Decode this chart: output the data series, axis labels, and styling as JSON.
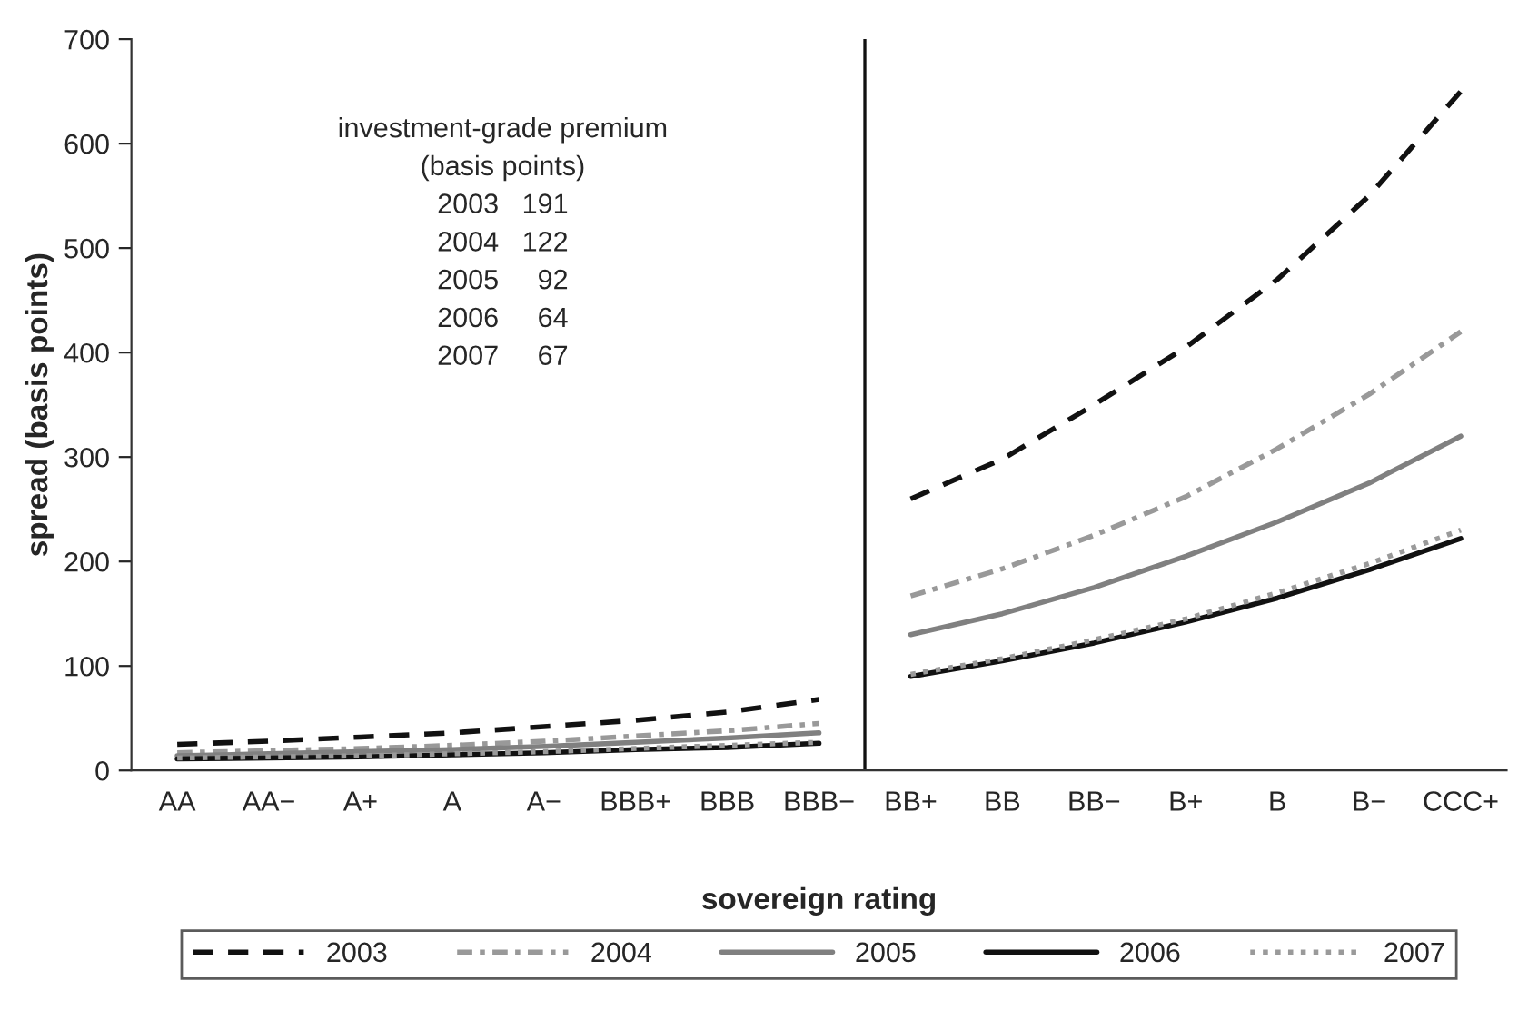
{
  "chart_data": {
    "type": "line",
    "xlabel": "sovereign rating",
    "ylabel": "spread (basis points)",
    "categories": [
      "AA",
      "AA−",
      "A+",
      "A",
      "A−",
      "BBB+",
      "BBB",
      "BBB−",
      "BB+",
      "BB",
      "BB−",
      "B+",
      "B",
      "B−",
      "CCC+"
    ],
    "series": [
      {
        "name": "2003",
        "color": "#111111",
        "line_style": "dashed",
        "values": [
          25,
          28,
          32,
          36,
          42,
          48,
          56,
          68,
          260,
          298,
          350,
          405,
          470,
          550,
          650
        ]
      },
      {
        "name": "2004",
        "color": "#999999",
        "line_style": "dashdot",
        "values": [
          17,
          19,
          21,
          24,
          28,
          33,
          38,
          45,
          167,
          193,
          225,
          262,
          308,
          360,
          420
        ]
      },
      {
        "name": "2005",
        "color": "#808080",
        "line_style": "solid",
        "values": [
          14,
          16,
          18,
          20,
          23,
          27,
          31,
          36,
          130,
          150,
          175,
          205,
          238,
          275,
          320
        ]
      },
      {
        "name": "2006",
        "color": "#111111",
        "line_style": "solid",
        "values": [
          11,
          12,
          13,
          15,
          17,
          20,
          22,
          26,
          90,
          105,
          122,
          142,
          165,
          192,
          222
        ]
      },
      {
        "name": "2007",
        "color": "#9a9a9a",
        "line_style": "dotted",
        "values": [
          12,
          13,
          14,
          16,
          18,
          21,
          24,
          27,
          92,
          107,
          125,
          145,
          170,
          198,
          230
        ]
      }
    ],
    "ylim": [
      0,
      700
    ],
    "yticks": [
      0,
      100,
      200,
      300,
      400,
      500,
      600,
      700
    ],
    "annotations": [
      "investment-grade premium\n(basis points)\n2003   191\n2004   122\n2005     92\n2006     64\n2007     67"
    ],
    "legend": "bottom",
    "grid": false
  }
}
